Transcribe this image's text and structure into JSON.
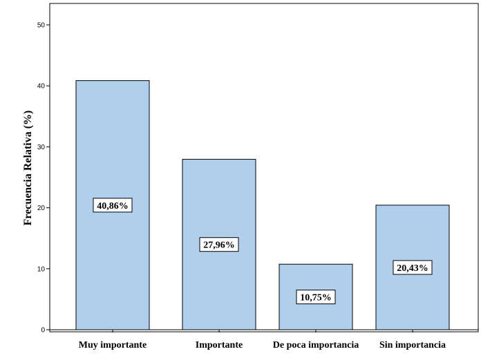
{
  "chart_data": {
    "type": "bar",
    "categories": [
      "Muy importante",
      "Importante",
      "De poca importancia",
      "Sin importancia"
    ],
    "values": [
      40.86,
      27.96,
      10.75,
      20.43
    ],
    "data_labels": [
      "40,86%",
      "27,96%",
      "10,75%",
      "20,43%"
    ],
    "ylabel": "Frecuencia Relativa (%)",
    "xlabel": "",
    "ylim": [
      0,
      50
    ],
    "yticks": [
      0,
      10,
      20,
      30,
      40,
      50
    ],
    "grid": false,
    "bar_color": "#b0cfec",
    "bar_stroke": "#000000"
  }
}
